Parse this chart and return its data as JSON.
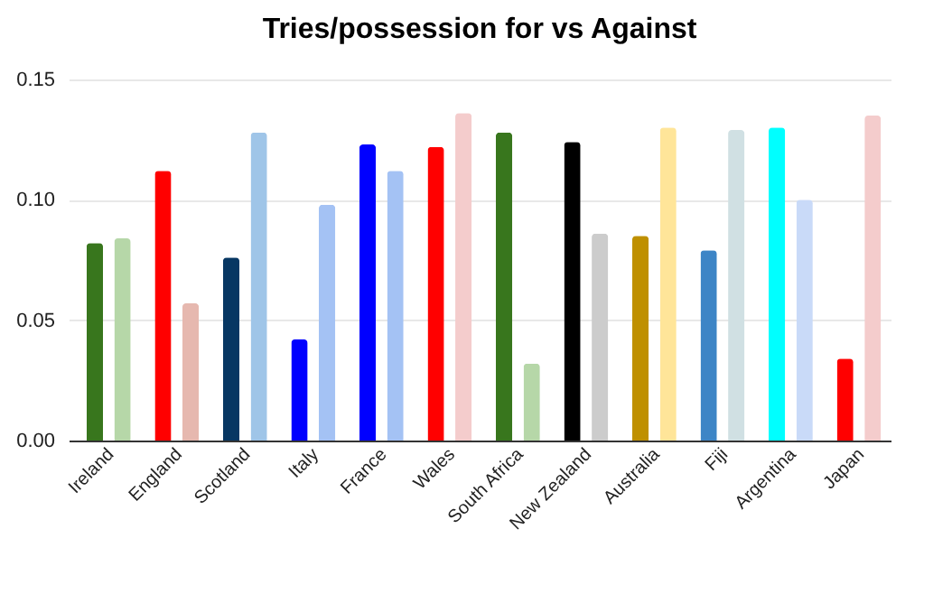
{
  "chart_data": {
    "type": "bar",
    "title": "Tries/possession for vs Against",
    "categories": [
      "Ireland",
      "England",
      "Scotland",
      "Italy",
      "France",
      "Wales",
      "South Africa",
      "New Zealand",
      "Australia",
      "Fiji",
      "Argentina",
      "Japan"
    ],
    "series": [
      {
        "colors": [
          "#38761d",
          "#ff0000",
          "#073763",
          "#0000ff",
          "#0000ff",
          "#ff0000",
          "#38761d",
          "#000000",
          "#bf9000",
          "#3d85c6",
          "#00ffff",
          "#ff0000"
        ],
        "values": [
          0.082,
          0.112,
          0.076,
          0.042,
          0.123,
          0.122,
          0.128,
          0.124,
          0.085,
          0.079,
          0.13,
          0.034
        ]
      },
      {
        "colors": [
          "#b6d7a8",
          "#e6b8af",
          "#9fc5e8",
          "#a4c2f4",
          "#a4c2f4",
          "#f4cccc",
          "#b6d7a8",
          "#cccccc",
          "#ffe599",
          "#d0e0e3",
          "#c9daf8",
          "#f4cccc"
        ],
        "values": [
          0.084,
          0.057,
          0.128,
          0.098,
          0.112,
          0.136,
          0.032,
          0.086,
          0.13,
          0.129,
          0.1,
          0.135
        ]
      }
    ],
    "ylim": [
      0,
      0.15
    ],
    "yticks": [
      {
        "value": 0,
        "label": "0.00"
      },
      {
        "value": 0.05,
        "label": "0.05"
      },
      {
        "value": 0.1,
        "label": "0.10"
      },
      {
        "value": 0.15,
        "label": "0.15"
      }
    ],
    "grid": "y"
  }
}
